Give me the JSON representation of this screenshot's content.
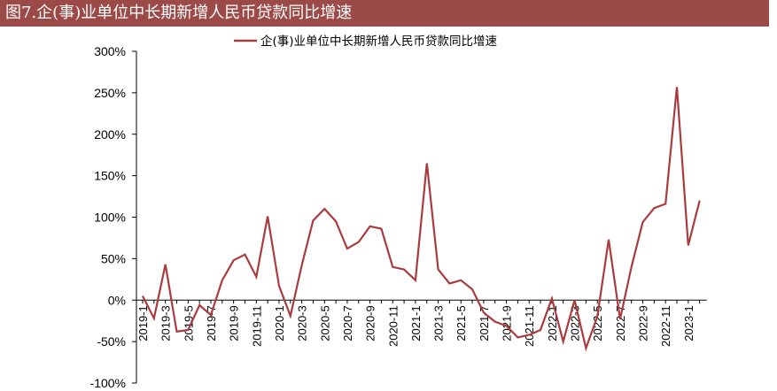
{
  "figure": {
    "title": "图7.企(事)业单位中长期新增人民币贷款同比增速"
  },
  "chart_data": {
    "type": "line",
    "legend": {
      "label": "企(事)业单位中长期新增人民币贷款同比增速",
      "placement": "top-right"
    },
    "y_axis": {
      "ylim": [
        -100,
        300
      ],
      "ticks": [
        -100,
        -50,
        0,
        50,
        100,
        150,
        200,
        250,
        300
      ],
      "tick_labels": [
        "-100%",
        "-50%",
        "0%",
        "50%",
        "100%",
        "150%",
        "200%",
        "250%",
        "300%"
      ],
      "unit": "%"
    },
    "x_axis": {
      "labeled_ticks": [
        "2019-1",
        "2019-3",
        "2019-5",
        "2019-7",
        "2019-9",
        "2019-11",
        "2020-1",
        "2020-3",
        "2020-5",
        "2020-7",
        "2020-9",
        "2020-11",
        "2021-1",
        "2021-3",
        "2021-5",
        "2021-7",
        "2021-9",
        "2021-11",
        "2022-1",
        "2022-3",
        "2022-5",
        "2022-7",
        "2022-9",
        "2022-11",
        "2023-1"
      ]
    },
    "grid": false,
    "color": "#a93b3f",
    "series": [
      {
        "name": "企(事)业单位中长期新增人民币贷款同比增速",
        "x": [
          "2019-1",
          "2019-2",
          "2019-3",
          "2019-4",
          "2019-5",
          "2019-6",
          "2019-7",
          "2019-8",
          "2019-9",
          "2019-10",
          "2019-11",
          "2019-12",
          "2020-1",
          "2020-2",
          "2020-3",
          "2020-4",
          "2020-5",
          "2020-6",
          "2020-7",
          "2020-8",
          "2020-9",
          "2020-10",
          "2020-11",
          "2020-12",
          "2021-1",
          "2021-2",
          "2021-3",
          "2021-4",
          "2021-5",
          "2021-6",
          "2021-7",
          "2021-8",
          "2021-9",
          "2021-10",
          "2021-11",
          "2021-12",
          "2022-1",
          "2022-2",
          "2022-3",
          "2022-4",
          "2022-5",
          "2022-6",
          "2022-7",
          "2022-8",
          "2022-9",
          "2022-10",
          "2022-11",
          "2022-12",
          "2023-1",
          "2023-2"
        ],
        "values": [
          5,
          -22,
          43,
          -38,
          -36,
          -6,
          -18,
          24,
          48,
          55,
          28,
          101,
          17,
          -19,
          42,
          96,
          110,
          95,
          62,
          70,
          89,
          86,
          40,
          37,
          24,
          165,
          37,
          20,
          24,
          13,
          -15,
          -26,
          -31,
          -45,
          -42,
          -36,
          2,
          -50,
          0,
          -58,
          -20,
          73,
          -23,
          40,
          94,
          111,
          116,
          257,
          66,
          120
        ]
      }
    ]
  }
}
